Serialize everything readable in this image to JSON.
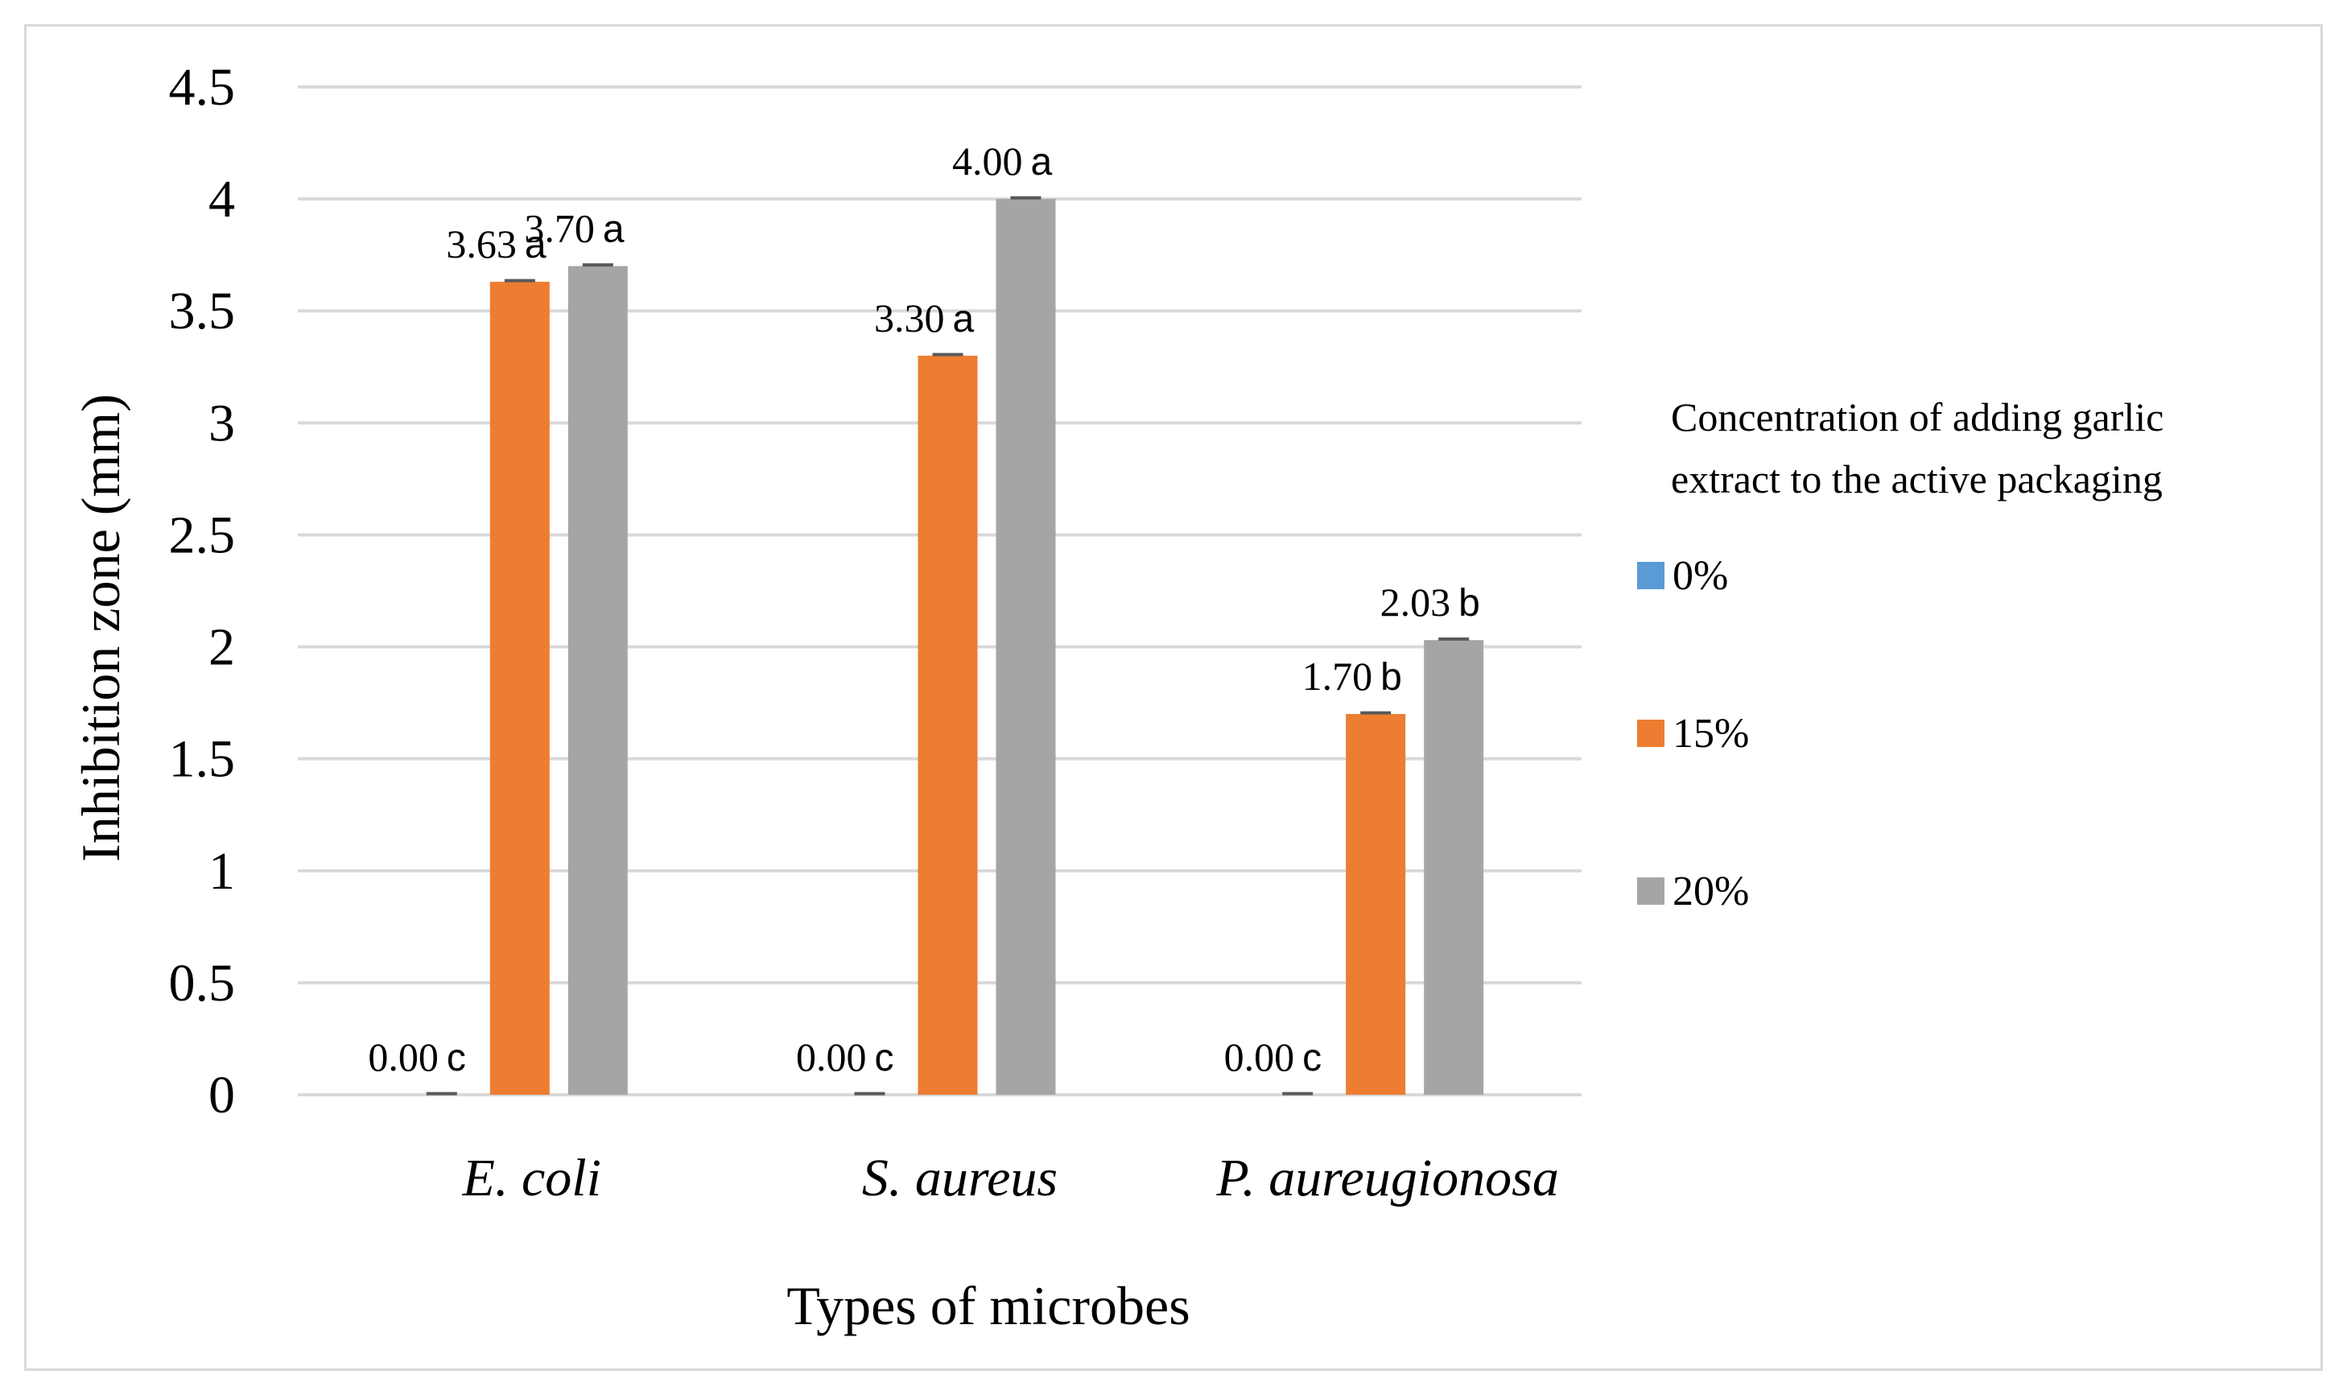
{
  "chart_data": {
    "type": "bar",
    "title": "",
    "xlabel": "Types of microbes",
    "ylabel": "Inhibition zone (mm)",
    "ylim": [
      0,
      4.5
    ],
    "yticks": [
      "0",
      "0.5",
      "1",
      "1.5",
      "2",
      "2.5",
      "3",
      "3.5",
      "4",
      "4.5"
    ],
    "grid": true,
    "categories": [
      "E. coli",
      "S. aureus",
      "P. aureugionosa"
    ],
    "series": [
      {
        "name": "0%",
        "color": "#5b9bd5",
        "values": [
          0.0,
          0.0,
          0.0
        ],
        "labels": [
          "0.00",
          "0.00",
          "0.00"
        ],
        "letters": [
          "c",
          "c",
          "c"
        ],
        "error": [
          0.005,
          0.005,
          0.005
        ]
      },
      {
        "name": "15%",
        "color": "#ed7d31",
        "values": [
          3.63,
          3.3,
          1.7
        ],
        "labels": [
          "3.63",
          "3.30",
          "1.70"
        ],
        "letters": [
          "a",
          "a",
          "b"
        ],
        "error": [
          0.005,
          0.005,
          0.005
        ]
      },
      {
        "name": "20%",
        "color": "#a5a5a5",
        "values": [
          3.7,
          4.0,
          2.03
        ],
        "labels": [
          "3.70",
          "4.00",
          "2.03"
        ],
        "letters": [
          "a",
          "a",
          "b"
        ],
        "error": [
          0.005,
          0.005,
          0.005
        ]
      }
    ],
    "legend": {
      "title_line1": "Concentration of adding garlic",
      "title_line2": "extract to the active packaging",
      "position": "right"
    }
  }
}
